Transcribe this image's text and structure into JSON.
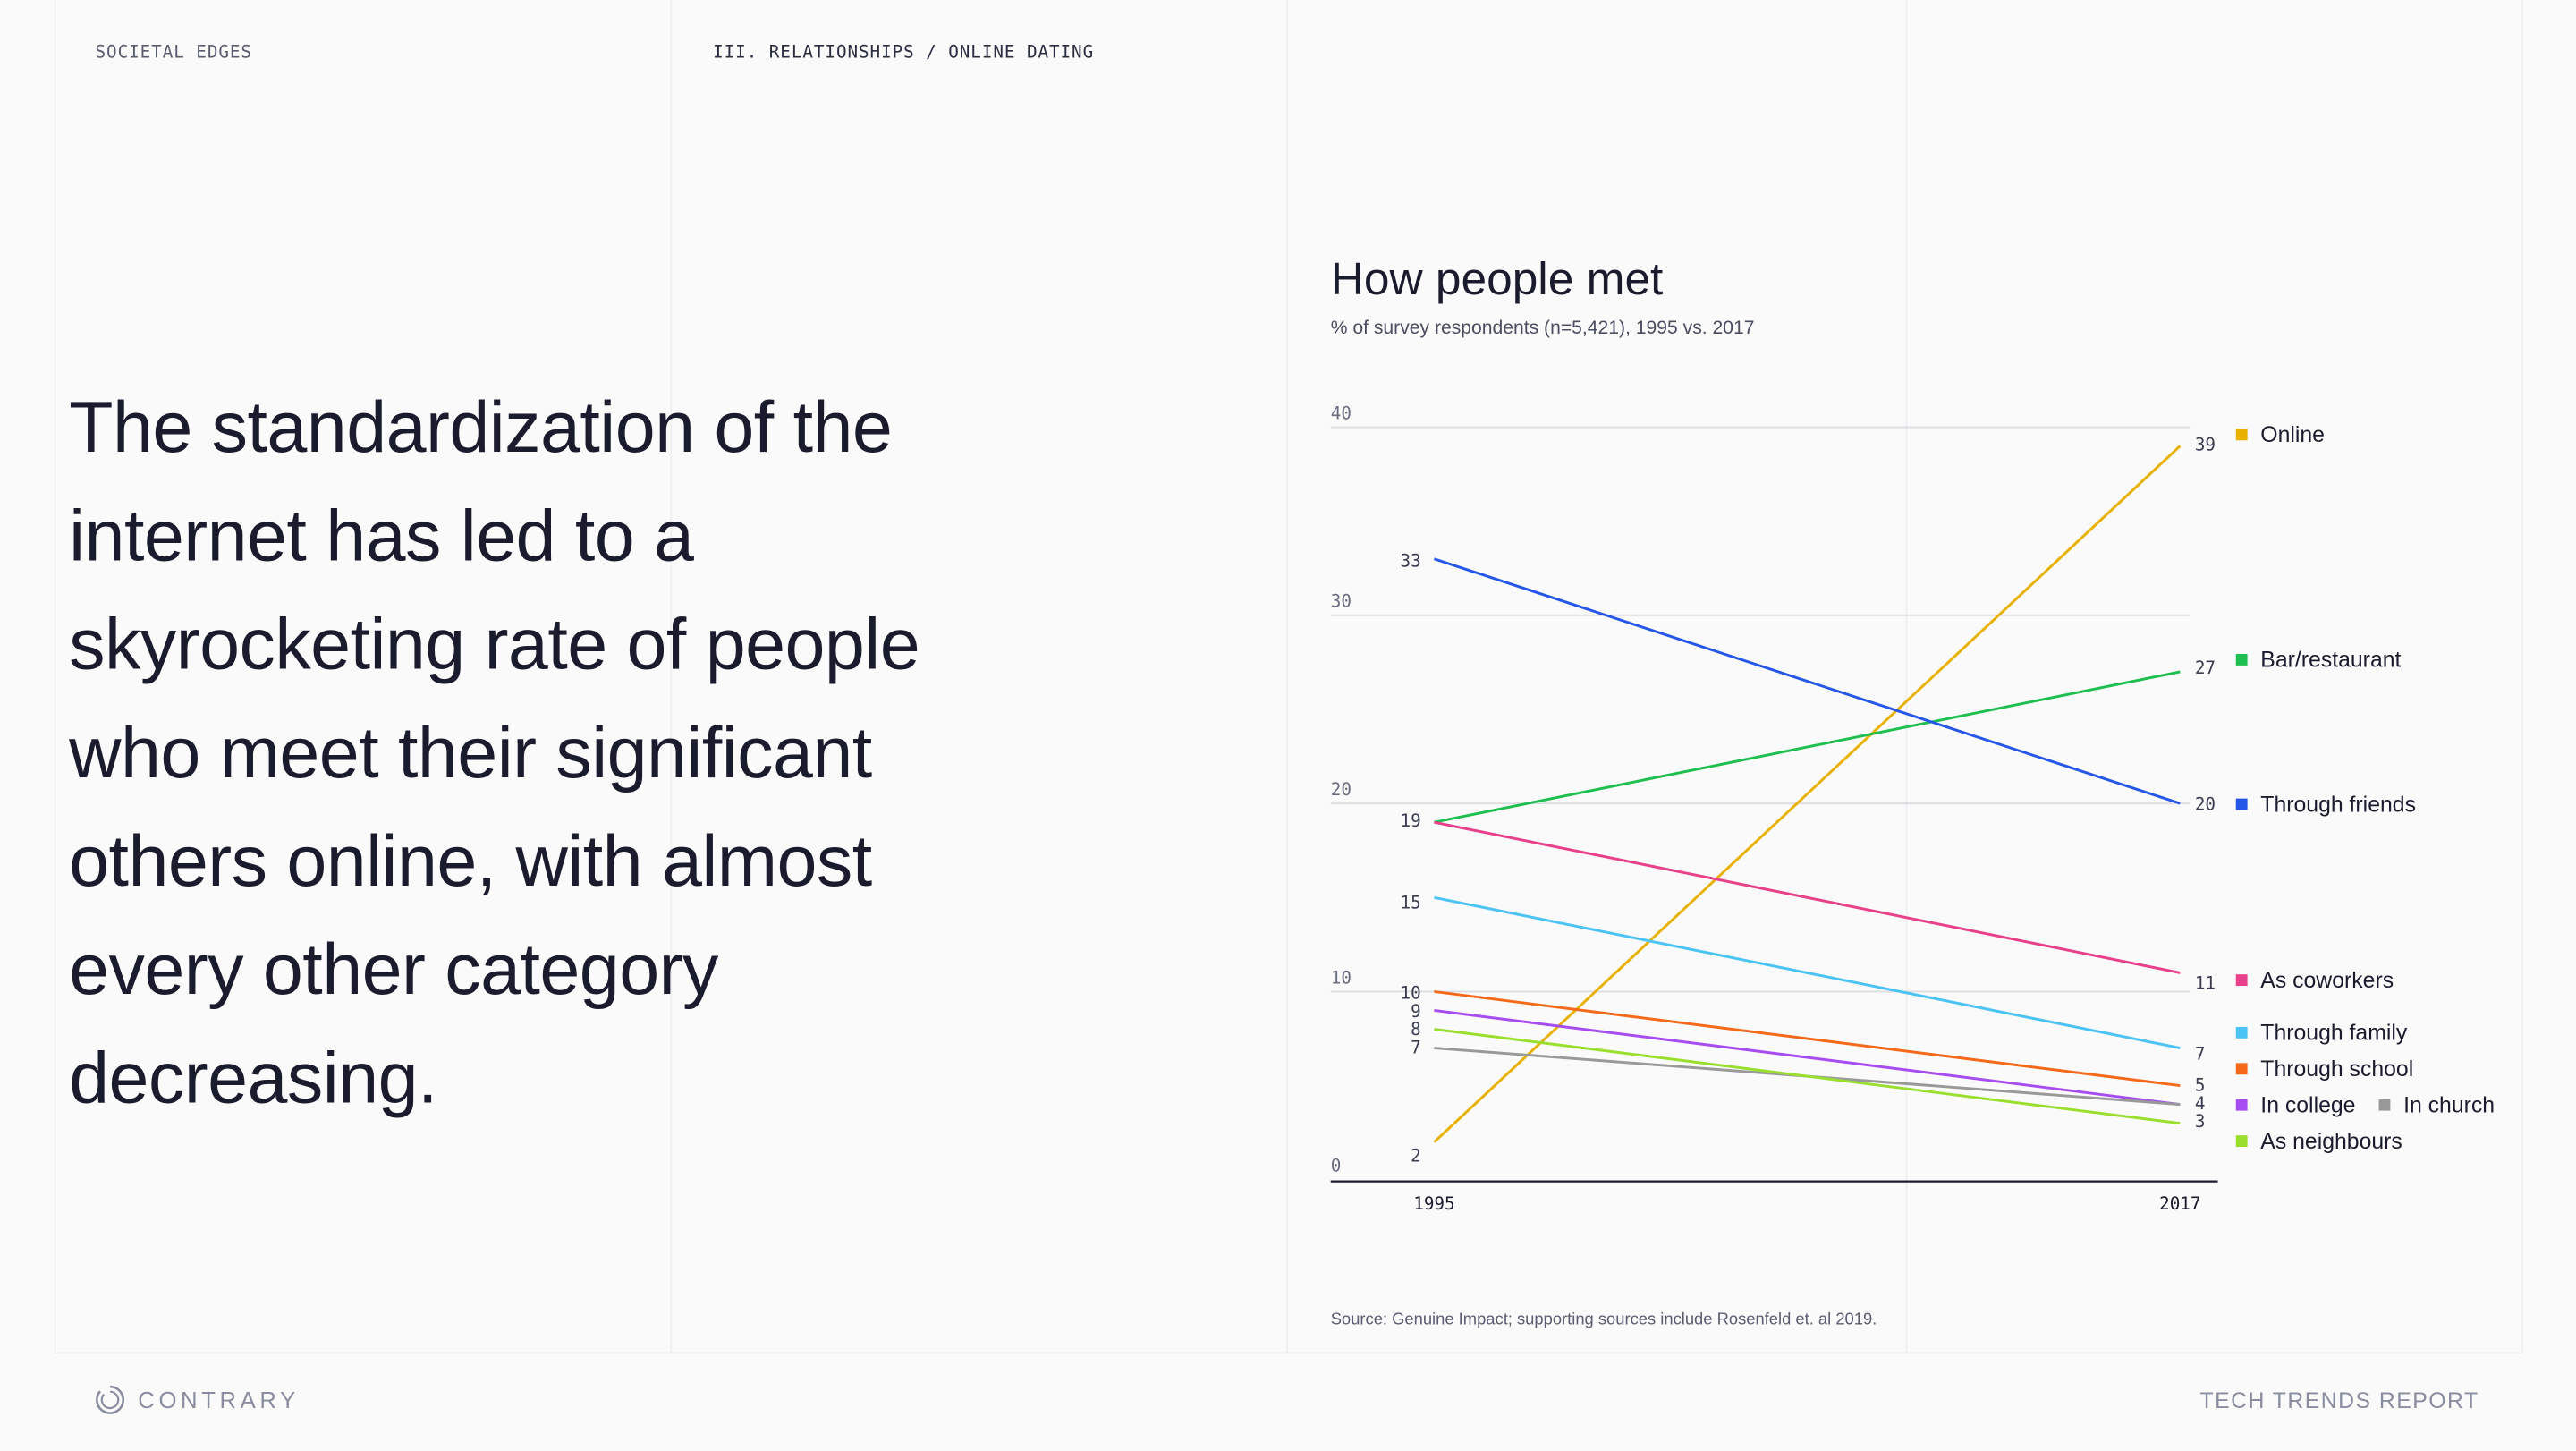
{
  "header": {
    "section": "SOCIETAL EDGES",
    "breadcrumb": "III. RELATIONSHIPS / ONLINE DATING"
  },
  "headline": "The standardization of the internet has led to a skyrocketing rate of people who meet their significant others online, with almost every other category decreasing.",
  "footer": {
    "brand": "CONTRARY",
    "report": "TECH TRENDS REPORT"
  },
  "chart_data": {
    "type": "line",
    "title": "How people met",
    "subtitle": "% of survey respondents (n=5,421), 1995 vs. 2017",
    "source": "Source: Genuine Impact; supporting sources include Rosenfeld et. al 2019.",
    "x": [
      "1995",
      "2017"
    ],
    "ylim": [
      0,
      40
    ],
    "yticks": [
      0,
      10,
      20,
      30,
      40
    ],
    "grid": true,
    "legend": "right",
    "series": [
      {
        "name": "Online",
        "values": [
          2,
          39
        ],
        "color": "#e8b100"
      },
      {
        "name": "Bar/restaurant",
        "values": [
          19,
          27
        ],
        "color": "#1fbf4f"
      },
      {
        "name": "Through friends",
        "values": [
          33,
          20
        ],
        "color": "#2456e8"
      },
      {
        "name": "As coworkers",
        "values": [
          19,
          11
        ],
        "color": "#e8408a"
      },
      {
        "name": "Through family",
        "values": [
          15,
          7
        ],
        "color": "#4cc3f5"
      },
      {
        "name": "Through school",
        "values": [
          10,
          5
        ],
        "color": "#f56a1a"
      },
      {
        "name": "In college",
        "values": [
          9,
          4
        ],
        "color": "#a64cf0"
      },
      {
        "name": "In church",
        "values": [
          7,
          4
        ],
        "color": "#999999"
      },
      {
        "name": "As neighbours",
        "values": [
          8,
          3
        ],
        "color": "#9ade2e"
      }
    ],
    "left_labels": [
      "33",
      "19",
      "15",
      "10",
      "9",
      "8",
      "7",
      "2"
    ],
    "right_labels": [
      "39",
      "27",
      "20",
      "11",
      "7",
      "5",
      "4",
      "3"
    ]
  }
}
